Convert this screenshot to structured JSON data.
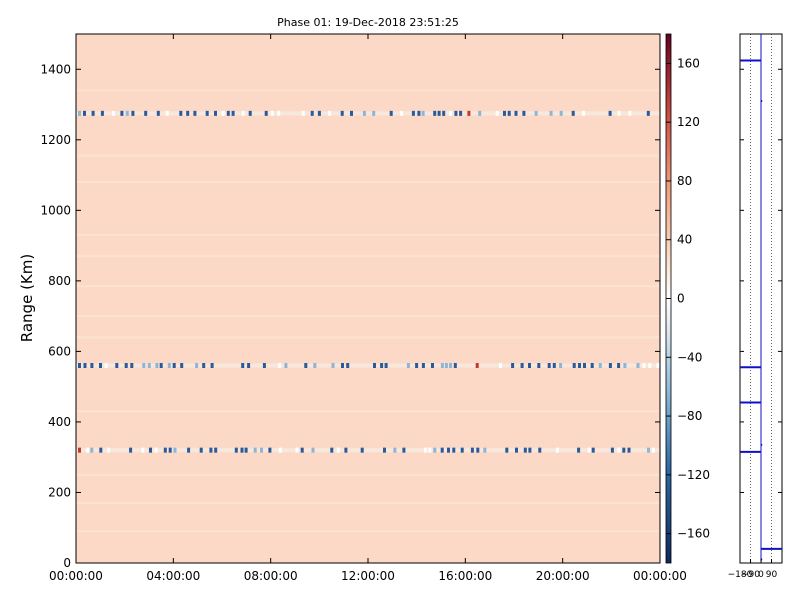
{
  "chart_data": [
    {
      "type": "heatmap",
      "title": "Phase 01: 19-Dec-2018 23:51:25",
      "ylabel": "Range (Km)",
      "xlabel": "",
      "xlim": [
        "00:00:00",
        "24:00:00"
      ],
      "ylim": [
        0,
        1500
      ],
      "x_ticks": [
        "00:00:00",
        "04:00:00",
        "08:00:00",
        "12:00:00",
        "16:00:00",
        "20:00:00",
        "00:00:00"
      ],
      "y_ticks": [
        0,
        200,
        400,
        600,
        800,
        1000,
        1200,
        1400
      ],
      "background_value": 45,
      "streak_ranges_km": [
        1275,
        560,
        320
      ],
      "colorbar": {
        "colormap": "diverging blue-white-red",
        "min": -180,
        "max": 180,
        "ticks": [
          160,
          120,
          80,
          40,
          0,
          -40,
          -80,
          -120,
          -160
        ]
      },
      "colors": {
        "background": "#fcd9c6",
        "streak": "#2a5a9a",
        "rare": "#c0392b"
      }
    },
    {
      "type": "line",
      "title": "",
      "xlabel": "",
      "ylabel": "",
      "xlim": [
        -180,
        180
      ],
      "ylim": [
        0,
        1500
      ],
      "x_ticks": [
        "−180",
        "−90",
        "0",
        "90"
      ],
      "profile": {
        "baseline": 0,
        "spikes": [
          {
            "range_km": 1425,
            "value": -180
          },
          {
            "range_km": 1310,
            "value": 10
          },
          {
            "range_km": 555,
            "value": -180
          },
          {
            "range_km": 455,
            "value": -180
          },
          {
            "range_km": 335,
            "value": 10
          },
          {
            "range_km": 315,
            "value": -180
          },
          {
            "range_km": 40,
            "value": 180
          },
          {
            "range_km": 10,
            "value": 10
          }
        ]
      },
      "colors": {
        "line": "#1010c8"
      }
    }
  ]
}
